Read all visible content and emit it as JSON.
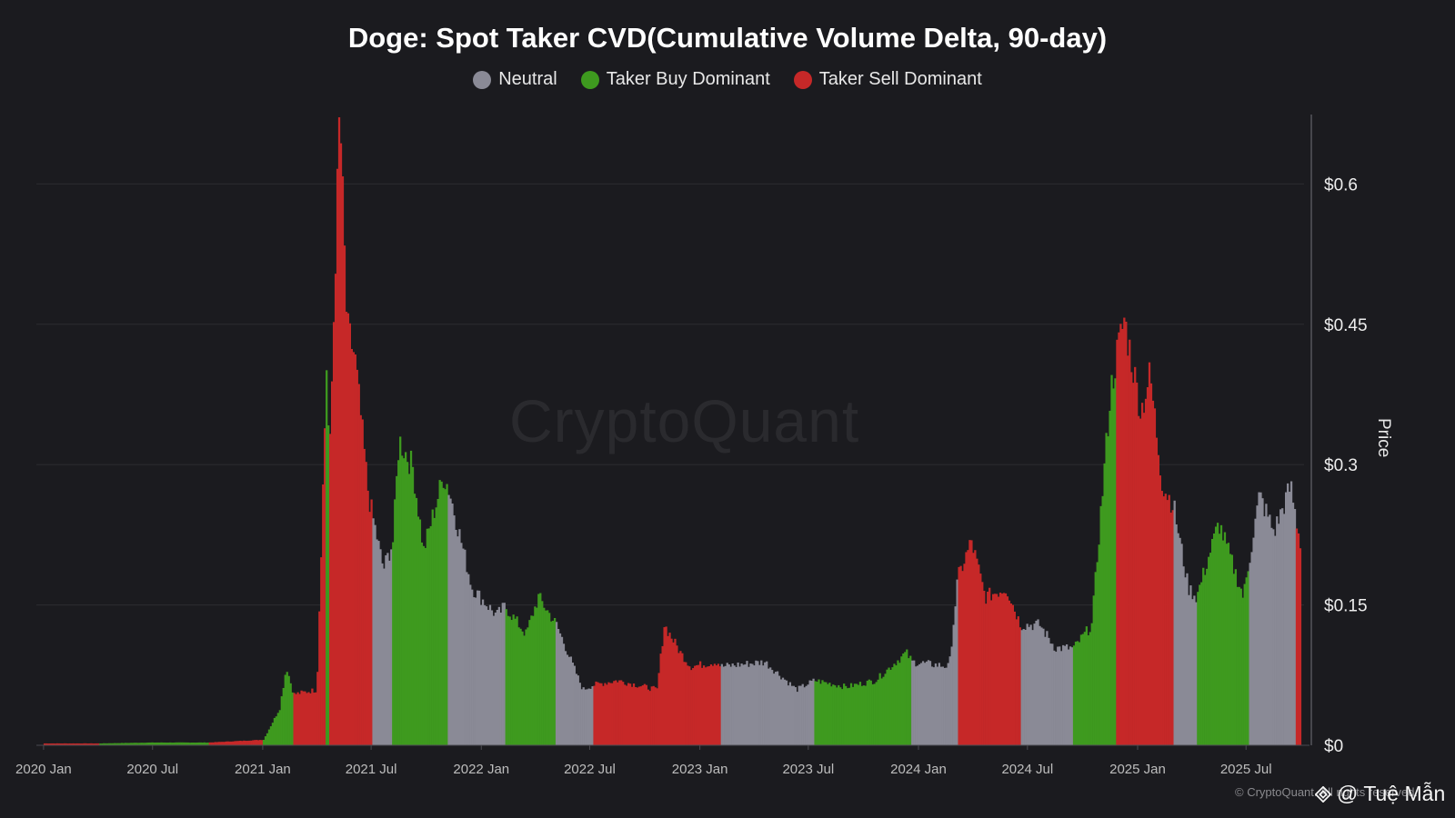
{
  "header": {
    "title": "Doge: Spot Taker CVD(Cumulative Volume Delta, 90-day)"
  },
  "legend": [
    {
      "label": "Neutral",
      "color": "#8a8a96"
    },
    {
      "label": "Taker Buy Dominant",
      "color": "#3e9a1f"
    },
    {
      "label": "Taker Sell Dominant",
      "color": "#c62828"
    }
  ],
  "watermark": {
    "brand": "CryptoQuant",
    "copyright": "© CryptoQuant. All rights reserved.",
    "author": "@ Tuệ Mẫn",
    "author_icon": "binance-diamond-icon"
  },
  "chart_data": {
    "type": "bar",
    "title": "Doge: Spot Taker CVD(Cumulative Volume Delta, 90-day)",
    "ylabel": "Price",
    "ylim": [
      0,
      0.68
    ],
    "y_ticks": [
      {
        "value": 0,
        "label": "$0"
      },
      {
        "value": 0.15,
        "label": "$0.15"
      },
      {
        "value": 0.3,
        "label": "$0.3"
      },
      {
        "value": 0.45,
        "label": "$0.45"
      },
      {
        "value": 0.6,
        "label": "$0.6"
      }
    ],
    "x_range": [
      "2019-12-20",
      "2025-10-15"
    ],
    "x_ticks": [
      {
        "date": "2020-01-01",
        "label": "2020 Jan"
      },
      {
        "date": "2020-07-01",
        "label": "2020 Jul"
      },
      {
        "date": "2021-01-01",
        "label": "2021 Jan"
      },
      {
        "date": "2021-07-01",
        "label": "2021 Jul"
      },
      {
        "date": "2022-01-01",
        "label": "2022 Jan"
      },
      {
        "date": "2022-07-01",
        "label": "2022 Jul"
      },
      {
        "date": "2023-01-01",
        "label": "2023 Jan"
      },
      {
        "date": "2023-07-01",
        "label": "2023 Jul"
      },
      {
        "date": "2024-01-01",
        "label": "2024 Jan"
      },
      {
        "date": "2024-07-01",
        "label": "2024 Jul"
      },
      {
        "date": "2025-01-01",
        "label": "2025 Jan"
      },
      {
        "date": "2025-07-01",
        "label": "2025 Jul"
      }
    ],
    "grid": true,
    "legend_position": "top-center",
    "series": [
      {
        "name": "Neutral",
        "color": "#8a8a96"
      },
      {
        "name": "Taker Buy Dominant",
        "color": "#3e9a1f"
      },
      {
        "name": "Taker Sell Dominant",
        "color": "#c62828"
      }
    ],
    "points": [
      [
        "2020-01-01",
        0.002,
        "Taker Sell Dominant"
      ],
      [
        "2020-04-01",
        0.002,
        "Taker Buy Dominant"
      ],
      [
        "2020-07-01",
        0.003,
        "Taker Buy Dominant"
      ],
      [
        "2020-10-01",
        0.003,
        "Taker Sell Dominant"
      ],
      [
        "2021-01-01",
        0.006,
        "Taker Buy Dominant"
      ],
      [
        "2021-01-28",
        0.04,
        "Taker Buy Dominant"
      ],
      [
        "2021-02-08",
        0.085,
        "Taker Buy Dominant"
      ],
      [
        "2021-02-20",
        0.055,
        "Taker Sell Dominant"
      ],
      [
        "2021-03-31",
        0.06,
        "Taker Sell Dominant"
      ],
      [
        "2021-04-16",
        0.41,
        "Taker Buy Dominant"
      ],
      [
        "2021-04-21",
        0.3,
        "Taker Sell Dominant"
      ],
      [
        "2021-05-08",
        0.69,
        "Taker Sell Dominant"
      ],
      [
        "2021-05-20",
        0.45,
        "Taker Sell Dominant"
      ],
      [
        "2021-06-02",
        0.42,
        "Taker Sell Dominant"
      ],
      [
        "2021-06-25",
        0.27,
        "Taker Sell Dominant"
      ],
      [
        "2021-07-01",
        0.25,
        "Neutral"
      ],
      [
        "2021-07-20",
        0.19,
        "Neutral"
      ],
      [
        "2021-08-05",
        0.22,
        "Taker Buy Dominant"
      ],
      [
        "2021-08-15",
        0.33,
        "Taker Buy Dominant"
      ],
      [
        "2021-09-07",
        0.3,
        "Taker Buy Dominant"
      ],
      [
        "2021-09-25",
        0.21,
        "Taker Buy Dominant"
      ],
      [
        "2021-10-28",
        0.29,
        "Taker Buy Dominant"
      ],
      [
        "2021-11-05",
        0.28,
        "Neutral"
      ],
      [
        "2021-12-15",
        0.17,
        "Neutral"
      ],
      [
        "2022-01-25",
        0.14,
        "Neutral"
      ],
      [
        "2022-02-08",
        0.15,
        "Taker Buy Dominant"
      ],
      [
        "2022-03-15",
        0.12,
        "Taker Buy Dominant"
      ],
      [
        "2022-04-05",
        0.16,
        "Taker Buy Dominant"
      ],
      [
        "2022-05-05",
        0.13,
        "Neutral"
      ],
      [
        "2022-06-18",
        0.06,
        "Neutral"
      ],
      [
        "2022-07-05",
        0.065,
        "Taker Sell Dominant"
      ],
      [
        "2022-08-15",
        0.07,
        "Taker Sell Dominant"
      ],
      [
        "2022-10-20",
        0.06,
        "Taker Sell Dominant"
      ],
      [
        "2022-11-01",
        0.13,
        "Taker Sell Dominant"
      ],
      [
        "2022-11-28",
        0.1,
        "Taker Sell Dominant"
      ],
      [
        "2022-12-15",
        0.085,
        "Taker Sell Dominant"
      ],
      [
        "2023-01-28",
        0.09,
        "Taker Sell Dominant"
      ],
      [
        "2023-02-05",
        0.085,
        "Neutral"
      ],
      [
        "2023-04-18",
        0.09,
        "Neutral"
      ],
      [
        "2023-06-10",
        0.06,
        "Neutral"
      ],
      [
        "2023-07-10",
        0.07,
        "Taker Buy Dominant"
      ],
      [
        "2023-09-01",
        0.063,
        "Taker Buy Dominant"
      ],
      [
        "2023-10-20",
        0.07,
        "Taker Buy Dominant"
      ],
      [
        "2023-12-10",
        0.1,
        "Taker Buy Dominant"
      ],
      [
        "2023-12-20",
        0.09,
        "Neutral"
      ],
      [
        "2024-02-20",
        0.085,
        "Neutral"
      ],
      [
        "2024-03-05",
        0.18,
        "Taker Sell Dominant"
      ],
      [
        "2024-03-28",
        0.22,
        "Taker Sell Dominant"
      ],
      [
        "2024-04-20",
        0.16,
        "Taker Sell Dominant"
      ],
      [
        "2024-05-25",
        0.17,
        "Taker Sell Dominant"
      ],
      [
        "2024-06-18",
        0.13,
        "Neutral"
      ],
      [
        "2024-07-20",
        0.13,
        "Neutral"
      ],
      [
        "2024-08-15",
        0.105,
        "Neutral"
      ],
      [
        "2024-09-15",
        0.105,
        "Taker Buy Dominant"
      ],
      [
        "2024-10-15",
        0.13,
        "Taker Buy Dominant"
      ],
      [
        "2024-11-15",
        0.38,
        "Taker Buy Dominant"
      ],
      [
        "2024-11-25",
        0.42,
        "Taker Sell Dominant"
      ],
      [
        "2024-12-08",
        0.46,
        "Taker Sell Dominant"
      ],
      [
        "2025-01-05",
        0.36,
        "Taker Sell Dominant"
      ],
      [
        "2025-01-20",
        0.4,
        "Taker Sell Dominant"
      ],
      [
        "2025-02-10",
        0.28,
        "Taker Sell Dominant"
      ],
      [
        "2025-02-28",
        0.26,
        "Neutral"
      ],
      [
        "2025-03-25",
        0.17,
        "Neutral"
      ],
      [
        "2025-04-08",
        0.16,
        "Taker Buy Dominant"
      ],
      [
        "2025-05-15",
        0.24,
        "Taker Buy Dominant"
      ],
      [
        "2025-06-25",
        0.16,
        "Taker Buy Dominant"
      ],
      [
        "2025-07-05",
        0.2,
        "Neutral"
      ],
      [
        "2025-07-22",
        0.27,
        "Neutral"
      ],
      [
        "2025-08-15",
        0.23,
        "Neutral"
      ],
      [
        "2025-09-12",
        0.28,
        "Neutral"
      ],
      [
        "2025-09-22",
        0.24,
        "Taker Sell Dominant"
      ],
      [
        "2025-09-28",
        0.22,
        "Taker Sell Dominant"
      ]
    ]
  }
}
